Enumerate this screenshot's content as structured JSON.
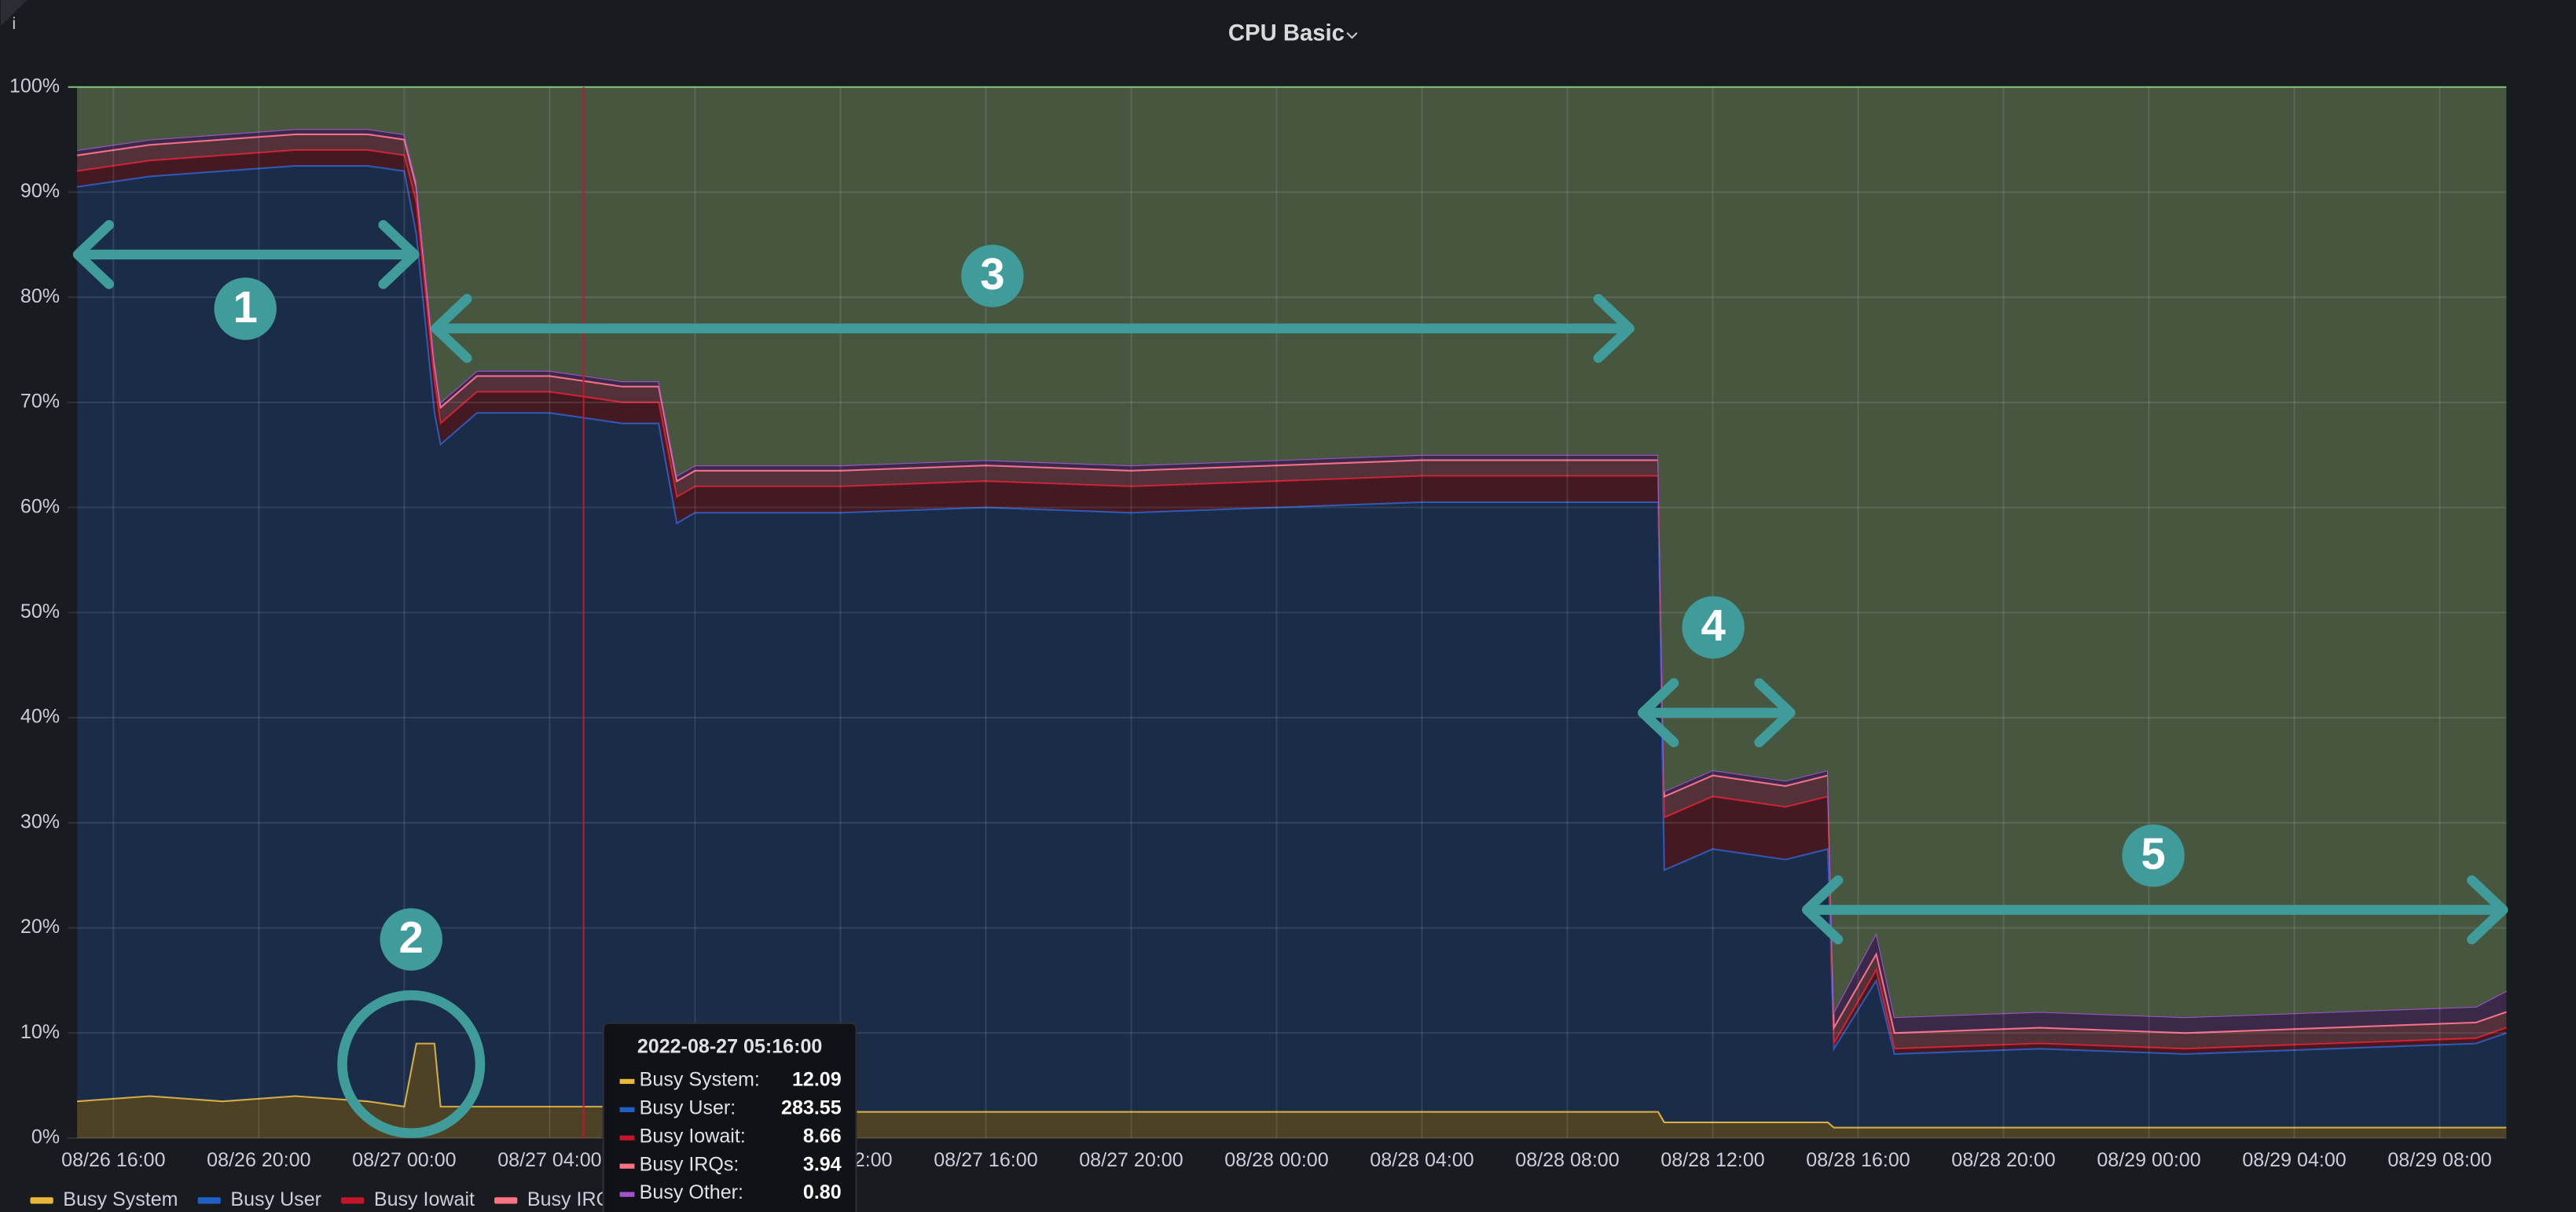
{
  "chart_data": {
    "type": "stacked-area",
    "title": "CPU Basic",
    "x": [
      "08/26 15:00",
      "08/26 17:00",
      "08/26 19:00",
      "08/26 21:00",
      "08/26 23:00",
      "08/27 00:00",
      "08/27 00:20",
      "08/27 00:50",
      "08/27 01:00",
      "08/27 02:00",
      "08/27 04:00",
      "08/27 06:00",
      "08/27 07:00",
      "08/27 07:30",
      "08/27 08:00",
      "08/27 12:00",
      "08/27 16:00",
      "08/27 20:00",
      "08/28 00:00",
      "08/28 04:00",
      "08/28 08:00",
      "08/28 10:30",
      "08/28 10:40",
      "08/28 12:00",
      "08/28 14:00",
      "08/28 15:10",
      "08/28 15:20",
      "08/28 16:30",
      "08/28 17:00",
      "08/28 21:00",
      "08/29 01:00",
      "08/29 05:00",
      "08/29 09:00",
      "08/29 09:50"
    ],
    "series": [
      {
        "name": "Busy System",
        "color": "#EAB839",
        "values": [
          3.5,
          4,
          3.5,
          4,
          3.5,
          3,
          9,
          9,
          3,
          3,
          3,
          3,
          3,
          2.5,
          2.5,
          2.5,
          2.5,
          2.5,
          2.5,
          2.5,
          2.5,
          2.5,
          1.5,
          1.5,
          1.5,
          1.5,
          1,
          1,
          1,
          1,
          1,
          1,
          1,
          1
        ]
      },
      {
        "name": "Busy User",
        "color": "#1F60C4",
        "values": [
          87,
          87.5,
          88.5,
          88.5,
          89,
          89,
          77,
          60,
          63,
          66,
          66,
          65,
          65,
          56,
          57,
          57,
          57.5,
          57,
          57.5,
          58,
          58,
          58,
          24,
          26,
          25,
          26,
          7.5,
          14,
          7,
          7.5,
          7,
          7.5,
          8,
          9
        ]
      },
      {
        "name": "Busy Iowait",
        "color": "#C4162A",
        "values": [
          1.5,
          1.5,
          1.5,
          1.5,
          1.5,
          1.5,
          3,
          3,
          2,
          2,
          2,
          2,
          2,
          2.5,
          2.5,
          2.5,
          2.5,
          2.5,
          2.5,
          2.5,
          2.5,
          2.5,
          5,
          5,
          5,
          5,
          0.5,
          1,
          0.5,
          0.5,
          0.5,
          0.5,
          0.5,
          0.5
        ]
      },
      {
        "name": "Busy IRQs",
        "color": "#FF7383",
        "values": [
          1.5,
          1.5,
          1.5,
          1.5,
          1.5,
          1.5,
          1.5,
          1.5,
          1.5,
          1.5,
          1.5,
          1.5,
          1.5,
          1.5,
          1.5,
          1.5,
          1.5,
          1.5,
          1.5,
          1.5,
          1.5,
          1.5,
          2,
          2,
          2,
          2,
          1.5,
          1.5,
          1.5,
          1.5,
          1.5,
          1.5,
          1.5,
          1.5
        ]
      },
      {
        "name": "Busy Other",
        "color": "#A352CC",
        "values": [
          0.5,
          0.5,
          0.5,
          0.5,
          0.5,
          0.5,
          0.5,
          0.5,
          0.5,
          0.5,
          0.5,
          0.5,
          0.5,
          0.5,
          0.5,
          0.5,
          0.5,
          0.5,
          0.5,
          0.5,
          0.5,
          0.5,
          0.5,
          0.5,
          0.5,
          0.5,
          1.5,
          2,
          1.5,
          1.5,
          1.5,
          1.5,
          1.5,
          2
        ]
      }
    ],
    "xlim": [
      "08/26 14:45",
      "08/29 09:50"
    ],
    "xticks": [
      "08/26 16:00",
      "08/26 20:00",
      "08/27 00:00",
      "08/27 04:00",
      "08/27 08:00",
      "08/27 12:00",
      "08/27 16:00",
      "08/27 20:00",
      "08/28 00:00",
      "08/28 04:00",
      "08/28 08:00",
      "08/28 12:00",
      "08/28 16:00",
      "08/28 20:00",
      "08/29 00:00",
      "08/29 04:00",
      "08/29 08:00"
    ],
    "ylim": [
      0,
      100
    ],
    "yticks": [
      {
        "value": 0,
        "label": "0%"
      },
      {
        "value": 10,
        "label": "10%"
      },
      {
        "value": 20,
        "label": "20%"
      },
      {
        "value": 30,
        "label": "30%"
      },
      {
        "value": 40,
        "label": "40%"
      },
      {
        "value": 50,
        "label": "50%"
      },
      {
        "value": 60,
        "label": "60%"
      },
      {
        "value": 70,
        "label": "70%"
      },
      {
        "value": 80,
        "label": "80%"
      },
      {
        "value": 90,
        "label": "90%"
      },
      {
        "value": 100,
        "label": "100%"
      }
    ],
    "grid": true,
    "legend": "bottom-left",
    "annotations": [
      "1",
      "2",
      "3",
      "4",
      "5"
    ],
    "tooltip": {
      "time": "2022-08-27 05:16:00",
      "rows": [
        {
          "name": "Busy System:",
          "value": "12.09"
        },
        {
          "name": "Busy User:",
          "value": "283.55"
        },
        {
          "name": "Busy Iowait:",
          "value": "8.66"
        },
        {
          "name": "Busy IRQs:",
          "value": "3.94"
        },
        {
          "name": "Busy Other:",
          "value": "0.80"
        }
      ]
    }
  }
}
